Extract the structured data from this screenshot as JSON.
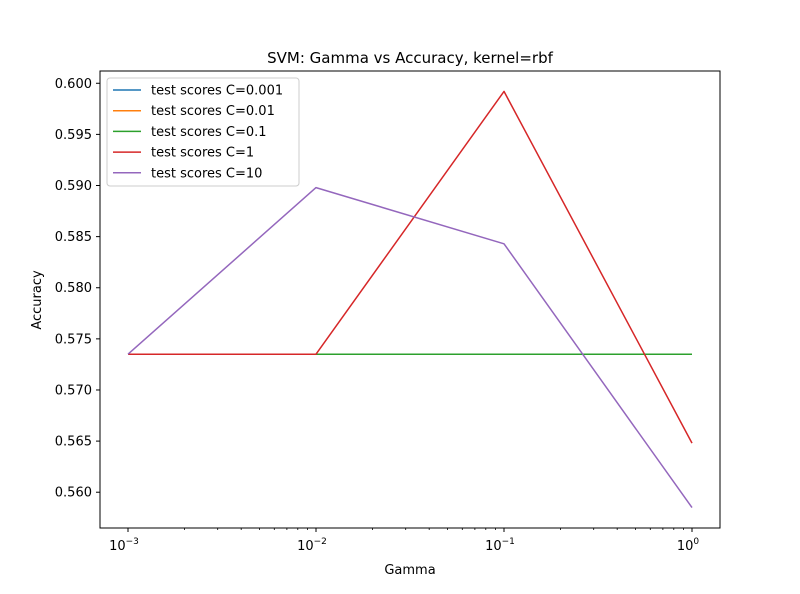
{
  "chart_data": {
    "type": "line",
    "title": "SVM: Gamma vs Accuracy, kernel=rbf",
    "xlabel": "Gamma",
    "ylabel": "Accuracy",
    "xscale": "log",
    "x": [
      0.001,
      0.01,
      0.1,
      1
    ],
    "x_tick_labels": [
      {
        "base": "10",
        "exp": "−3"
      },
      {
        "base": "10",
        "exp": "−2"
      },
      {
        "base": "10",
        "exp": "−1"
      },
      {
        "base": "10",
        "exp": "0"
      }
    ],
    "yticks": [
      0.56,
      0.565,
      0.57,
      0.575,
      0.58,
      0.585,
      0.59,
      0.595,
      0.6
    ],
    "y_tick_labels": [
      "0.560",
      "0.565",
      "0.570",
      "0.575",
      "0.580",
      "0.585",
      "0.590",
      "0.595",
      "0.600"
    ],
    "ylim": [
      0.5565,
      0.6012
    ],
    "grid": false,
    "legend_position": "upper-left",
    "series": [
      {
        "name": "test scores C=0.001",
        "color": "#1f77b4",
        "values": [
          0.5735,
          0.5735,
          0.5735,
          0.5735
        ]
      },
      {
        "name": "test scores C=0.01",
        "color": "#ff7f0e",
        "values": [
          0.5735,
          0.5735,
          0.5735,
          0.5735
        ]
      },
      {
        "name": "test scores C=0.1",
        "color": "#2ca02c",
        "values": [
          0.5735,
          0.5735,
          0.5735,
          0.5735
        ]
      },
      {
        "name": "test scores C=1",
        "color": "#d62728",
        "values": [
          0.5735,
          0.5735,
          0.5992,
          0.5648
        ]
      },
      {
        "name": "test scores C=10",
        "color": "#9467bd",
        "values": [
          0.5735,
          0.5898,
          0.5843,
          0.5585
        ]
      }
    ]
  }
}
